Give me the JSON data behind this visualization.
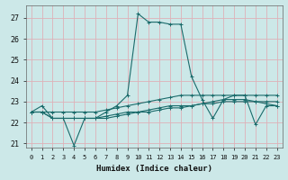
{
  "xlabel": "Humidex (Indice chaleur)",
  "xlim": [
    -0.5,
    23.5
  ],
  "ylim": [
    20.8,
    27.6
  ],
  "yticks": [
    21,
    22,
    23,
    24,
    25,
    26,
    27
  ],
  "xticks": [
    0,
    1,
    2,
    3,
    4,
    5,
    6,
    7,
    8,
    9,
    10,
    11,
    12,
    13,
    14,
    15,
    16,
    17,
    18,
    19,
    20,
    21,
    22,
    23
  ],
  "bg_color": "#cce8e8",
  "grid_color": "#deb0b8",
  "line_color": "#1a6b6b",
  "line1": [
    22.5,
    22.8,
    22.2,
    22.2,
    20.9,
    22.2,
    22.2,
    22.5,
    22.8,
    23.3,
    27.2,
    26.8,
    26.8,
    26.7,
    26.7,
    24.2,
    23.1,
    22.2,
    23.1,
    23.3,
    23.3,
    21.9,
    22.8,
    22.8
  ],
  "line2": [
    22.5,
    22.5,
    22.5,
    22.5,
    22.5,
    22.5,
    22.5,
    22.6,
    22.7,
    22.8,
    22.9,
    23.0,
    23.1,
    23.2,
    23.3,
    23.3,
    23.3,
    23.3,
    23.3,
    23.3,
    23.3,
    23.3,
    23.3,
    23.3
  ],
  "line3": [
    22.5,
    22.5,
    22.2,
    22.2,
    22.2,
    22.2,
    22.2,
    22.3,
    22.4,
    22.5,
    22.5,
    22.6,
    22.7,
    22.8,
    22.8,
    22.8,
    22.9,
    22.9,
    23.0,
    23.0,
    23.0,
    23.0,
    23.0,
    23.0
  ],
  "line4": [
    22.5,
    22.5,
    22.2,
    22.2,
    22.2,
    22.2,
    22.2,
    22.2,
    22.3,
    22.4,
    22.5,
    22.5,
    22.6,
    22.7,
    22.7,
    22.8,
    22.9,
    23.0,
    23.1,
    23.1,
    23.1,
    23.0,
    22.9,
    22.8
  ],
  "marker": "+",
  "markersize": 3,
  "linewidth": 0.8
}
